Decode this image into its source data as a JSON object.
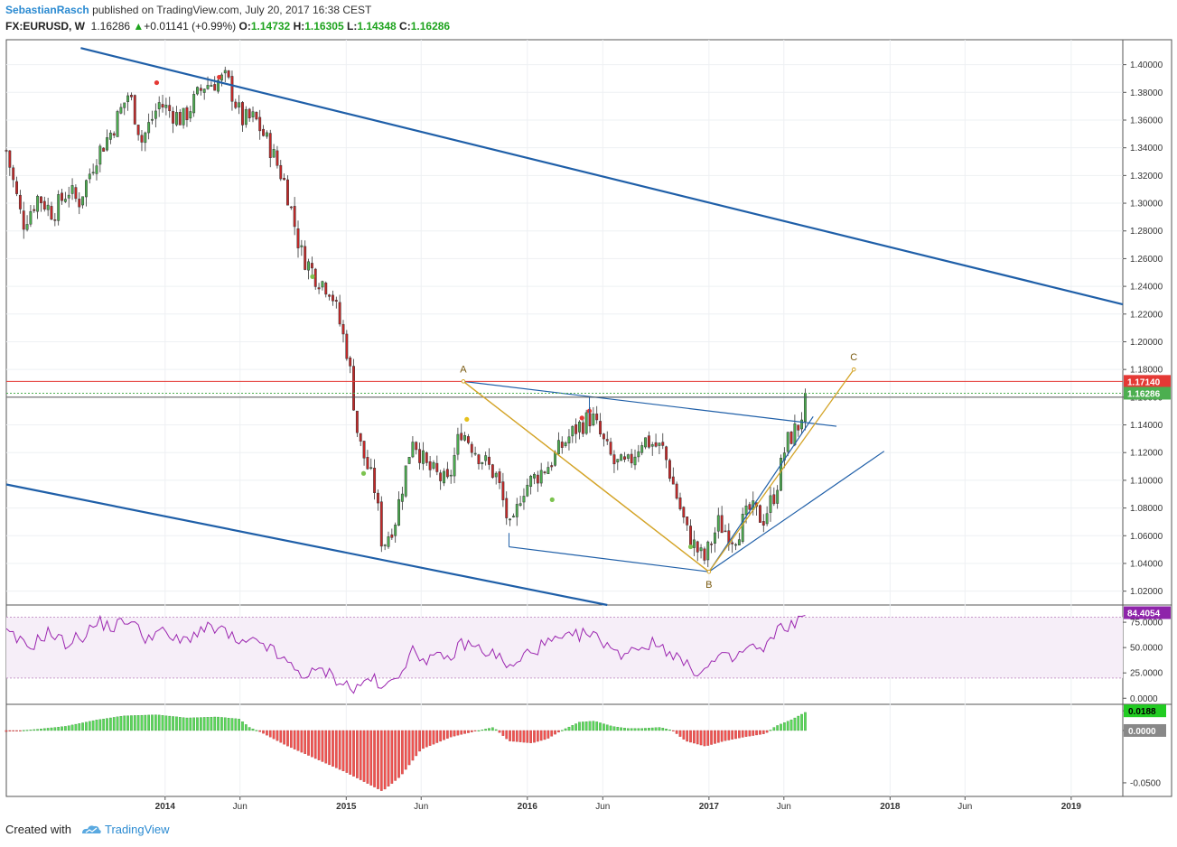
{
  "header": {
    "author": "SebastianRasch",
    "published_on": "published on TradingView.com, July 20, 2017 16:38 CEST",
    "symbol": "FX:EURUSD, W",
    "price": "1.16286",
    "change_arrow": "▲",
    "change": "+0.01141 (+0.99%)",
    "open_label": "O:",
    "open": "1.14732",
    "high_label": "H:",
    "high": "1.16305",
    "low_label": "L:",
    "low": "1.14348",
    "close_label": "C:",
    "close": "1.16286"
  },
  "footer": {
    "created_with": "Created with",
    "brand": "TradingView",
    "logo_icon": "tradingview-cloud-icon"
  },
  "colors": {
    "up": "#4caf50",
    "down": "#c62828",
    "trend": "#1f5fa8",
    "abc": "#d4a52a",
    "rsi": "#9c27b0",
    "hist_pos": "#5bd75b",
    "hist_neg": "#ef5350"
  },
  "chart_data": [
    {
      "type": "candlestick",
      "x_ticks": [
        {
          "label": "2014",
          "date": "2014-01-01",
          "bold": true
        },
        {
          "label": "Jun",
          "date": "2014-06-01",
          "bold": false
        },
        {
          "label": "2015",
          "date": "2015-01-01",
          "bold": true
        },
        {
          "label": "Jun",
          "date": "2015-06-01",
          "bold": false
        },
        {
          "label": "2016",
          "date": "2016-01-01",
          "bold": true
        },
        {
          "label": "Jun",
          "date": "2016-06-01",
          "bold": false
        },
        {
          "label": "2017",
          "date": "2017-01-01",
          "bold": true
        },
        {
          "label": "Jun",
          "date": "2017-06-01",
          "bold": false
        },
        {
          "label": "2018",
          "date": "2018-01-01",
          "bold": true
        },
        {
          "label": "Jun",
          "date": "2018-06-01",
          "bold": false
        },
        {
          "label": "2019",
          "date": "2019-01-01",
          "bold": true
        }
      ],
      "x_range": [
        "2013-02-15",
        "2019-04-15"
      ],
      "y_range": [
        1.01,
        1.418
      ],
      "y_ticks": [
        "1.02000",
        "1.04000",
        "1.06000",
        "1.08000",
        "1.10000",
        "1.12000",
        "1.14000",
        "1.16000",
        "1.18000",
        "1.20000",
        "1.22000",
        "1.24000",
        "1.26000",
        "1.28000",
        "1.30000",
        "1.32000",
        "1.34000",
        "1.36000",
        "1.38000",
        "1.40000"
      ],
      "price_labels": [
        {
          "text": "1.17140",
          "value": 1.1714,
          "color": "#e53935"
        },
        {
          "text": "1.16286",
          "value": 1.16286,
          "color": "#4caf50"
        }
      ],
      "close_path": [
        [
          "2013-02-15",
          1.338
        ],
        [
          "2013-03-20",
          1.285
        ],
        [
          "2013-04-20",
          1.305
        ],
        [
          "2013-05-20",
          1.293
        ],
        [
          "2013-06-20",
          1.31
        ],
        [
          "2013-07-10",
          1.3
        ],
        [
          "2013-08-15",
          1.334
        ],
        [
          "2013-09-15",
          1.352
        ],
        [
          "2013-10-20",
          1.38
        ],
        [
          "2013-11-15",
          1.345
        ],
        [
          "2013-12-20",
          1.372
        ],
        [
          "2014-02-05",
          1.36
        ],
        [
          "2014-03-20",
          1.385
        ],
        [
          "2014-05-05",
          1.39
        ],
        [
          "2014-06-05",
          1.36
        ],
        [
          "2014-07-01",
          1.361
        ],
        [
          "2014-08-01",
          1.34
        ],
        [
          "2014-09-01",
          1.313
        ],
        [
          "2014-10-01",
          1.265
        ],
        [
          "2014-11-01",
          1.247
        ],
        [
          "2014-12-01",
          1.238
        ],
        [
          "2015-01-05",
          1.19
        ],
        [
          "2015-01-25",
          1.13
        ],
        [
          "2015-03-01",
          1.092
        ],
        [
          "2015-03-15",
          1.052
        ],
        [
          "2015-04-10",
          1.072
        ],
        [
          "2015-05-15",
          1.132
        ],
        [
          "2015-06-10",
          1.11
        ],
        [
          "2015-07-25",
          1.097
        ],
        [
          "2015-08-20",
          1.137
        ],
        [
          "2015-09-20",
          1.121
        ],
        [
          "2015-11-01",
          1.102
        ],
        [
          "2015-11-30",
          1.06
        ],
        [
          "2015-12-20",
          1.093
        ],
        [
          "2016-02-15",
          1.112
        ],
        [
          "2016-03-15",
          1.127
        ],
        [
          "2016-04-10",
          1.138
        ],
        [
          "2016-05-10",
          1.146
        ],
        [
          "2016-06-05",
          1.125
        ],
        [
          "2016-06-24",
          1.112
        ],
        [
          "2016-07-20",
          1.11
        ],
        [
          "2016-08-20",
          1.13
        ],
        [
          "2016-10-01",
          1.122
        ],
        [
          "2016-10-25",
          1.092
        ],
        [
          "2016-11-20",
          1.06
        ],
        [
          "2016-12-22",
          1.042
        ],
        [
          "2017-01-20",
          1.069
        ],
        [
          "2017-02-20",
          1.058
        ],
        [
          "2017-03-25",
          1.079
        ],
        [
          "2017-04-20",
          1.072
        ],
        [
          "2017-05-15",
          1.092
        ],
        [
          "2017-06-05",
          1.126
        ],
        [
          "2017-07-01",
          1.14
        ],
        [
          "2017-07-20",
          1.16286
        ]
      ],
      "markers": [
        {
          "date": "2013-12-15",
          "value": 1.387,
          "color": "#e53935"
        },
        {
          "date": "2014-04-20",
          "value": 1.391,
          "color": "#e53935"
        },
        {
          "date": "2014-10-25",
          "value": 1.247,
          "color": "#7cc34f"
        },
        {
          "date": "2015-02-05",
          "value": 1.105,
          "color": "#7cc34f"
        },
        {
          "date": "2015-09-01",
          "value": 1.144,
          "color": "#e6c11b"
        },
        {
          "date": "2016-04-20",
          "value": 1.145,
          "color": "#e53935"
        },
        {
          "date": "2016-05-05",
          "value": 1.15,
          "color": "#e53935"
        },
        {
          "date": "2016-02-20",
          "value": 1.086,
          "color": "#7cc34f"
        },
        {
          "date": "2016-11-25",
          "value": 1.052,
          "color": "#7cc34f"
        }
      ],
      "abc_points": [
        {
          "label": "A",
          "date": "2015-08-25",
          "value": 1.1714
        },
        {
          "label": "B",
          "date": "2017-01-01",
          "value": 1.034
        },
        {
          "label": "C",
          "date": "2017-10-20",
          "value": 1.18
        }
      ],
      "trend_lines": [
        {
          "from": [
            "2013-07-15",
            1.412
          ],
          "to": [
            "2019-04-15",
            1.227
          ],
          "width": 2.2
        },
        {
          "from": [
            "2013-02-15",
            1.097
          ],
          "to": [
            "2016-06-10",
            1.01
          ],
          "width": 2.2
        },
        {
          "from": [
            "2015-08-25",
            1.1714
          ],
          "to": [
            "2017-09-15",
            1.139
          ],
          "width": 1.2
        },
        {
          "from": [
            "2015-11-25",
            1.052
          ],
          "to": [
            "2017-01-01",
            1.034
          ],
          "width": 1.2
        },
        {
          "from": [
            "2017-01-01",
            1.034
          ],
          "to": [
            "2017-12-20",
            1.121
          ],
          "width": 1.2
        },
        {
          "from": [
            "2017-01-01",
            1.034
          ],
          "to": [
            "2017-07-30",
            1.146
          ],
          "width": 1.2
        },
        {
          "from": [
            "2016-05-05",
            1.16
          ],
          "to": [
            "2016-05-05",
            1.148
          ],
          "width": 1.0
        },
        {
          "from": [
            "2016-05-05",
            1.16
          ],
          "to": [
            "2017-07-20",
            1.16
          ],
          "width": 1.0
        },
        {
          "from": [
            "2015-11-25",
            1.052
          ],
          "to": [
            "2015-11-25",
            1.062
          ],
          "width": 1.0
        }
      ],
      "hlines": [
        {
          "value": 1.1714,
          "color": "#e53935"
        },
        {
          "value": 1.16286,
          "color": "#4caf50",
          "dashed": true
        },
        {
          "value": 1.16,
          "color": "#555555"
        }
      ]
    },
    {
      "type": "line",
      "name": "RSI",
      "y_range": [
        -6,
        92
      ],
      "y_ticks": [
        "75.0000",
        "50.0000",
        "25.0000",
        "0.0000"
      ],
      "band": [
        20,
        80
      ],
      "last_label": "84.4054",
      "path": [
        [
          "2013-02-15",
          64
        ],
        [
          "2013-04-01",
          50
        ],
        [
          "2013-05-10",
          65
        ],
        [
          "2013-06-15",
          54
        ],
        [
          "2013-07-20",
          62
        ],
        [
          "2013-08-20",
          75
        ],
        [
          "2013-09-20",
          70
        ],
        [
          "2013-10-20",
          79
        ],
        [
          "2013-11-20",
          60
        ],
        [
          "2013-12-20",
          66
        ],
        [
          "2014-02-01",
          55
        ],
        [
          "2014-03-15",
          68
        ],
        [
          "2014-04-25",
          68
        ],
        [
          "2014-06-01",
          52
        ],
        [
          "2014-07-15",
          56
        ],
        [
          "2014-08-15",
          42
        ],
        [
          "2014-09-15",
          30
        ],
        [
          "2014-10-15",
          22
        ],
        [
          "2014-11-15",
          28
        ],
        [
          "2014-12-20",
          17
        ],
        [
          "2015-01-20",
          8
        ],
        [
          "2015-02-20",
          22
        ],
        [
          "2015-03-15",
          6
        ],
        [
          "2015-04-10",
          22
        ],
        [
          "2015-05-15",
          45
        ],
        [
          "2015-06-10",
          40
        ],
        [
          "2015-07-25",
          38
        ],
        [
          "2015-08-25",
          55
        ],
        [
          "2015-09-20",
          50
        ],
        [
          "2015-11-01",
          42
        ],
        [
          "2015-12-01",
          28
        ],
        [
          "2016-01-01",
          45
        ],
        [
          "2016-02-15",
          55
        ],
        [
          "2016-03-20",
          58
        ],
        [
          "2016-04-25",
          64
        ],
        [
          "2016-06-10",
          55
        ],
        [
          "2016-06-28",
          42
        ],
        [
          "2016-08-01",
          50
        ],
        [
          "2016-09-15",
          54
        ],
        [
          "2016-10-20",
          45
        ],
        [
          "2016-11-20",
          30
        ],
        [
          "2016-12-20",
          26
        ],
        [
          "2017-01-20",
          40
        ],
        [
          "2017-02-20",
          38
        ],
        [
          "2017-03-25",
          52
        ],
        [
          "2017-04-20",
          45
        ],
        [
          "2017-05-15",
          65
        ],
        [
          "2017-06-10",
          72
        ],
        [
          "2017-07-01",
          76
        ],
        [
          "2017-07-20",
          84.4
        ]
      ]
    },
    {
      "type": "bar",
      "name": "MACD histogram",
      "y_range": [
        -0.063,
        0.025
      ],
      "y_ticks": [
        "0.0188",
        "0.0000",
        "-0.0500"
      ],
      "path": [
        [
          "2013-02-15",
          -0.001
        ],
        [
          "2013-04-15",
          0.001
        ],
        [
          "2013-06-15",
          0.004
        ],
        [
          "2013-08-15",
          0.01
        ],
        [
          "2013-10-10",
          0.014
        ],
        [
          "2013-12-15",
          0.015
        ],
        [
          "2014-02-15",
          0.012
        ],
        [
          "2014-04-15",
          0.013
        ],
        [
          "2014-05-30",
          0.011
        ],
        [
          "2014-06-20",
          0.003
        ],
        [
          "2014-07-15",
          -0.002
        ],
        [
          "2014-09-01",
          -0.014
        ],
        [
          "2014-11-01",
          -0.027
        ],
        [
          "2015-01-01",
          -0.04
        ],
        [
          "2015-03-15",
          -0.058
        ],
        [
          "2015-04-20",
          -0.044
        ],
        [
          "2015-06-01",
          -0.018
        ],
        [
          "2015-08-01",
          -0.006
        ],
        [
          "2015-09-15",
          -0.001
        ],
        [
          "2015-10-25",
          0.003
        ],
        [
          "2015-11-25",
          -0.01
        ],
        [
          "2016-01-10",
          -0.012
        ],
        [
          "2016-02-10",
          -0.008
        ],
        [
          "2016-03-10",
          0.0
        ],
        [
          "2016-04-15",
          0.008
        ],
        [
          "2016-05-15",
          0.009
        ],
        [
          "2016-06-20",
          0.004
        ],
        [
          "2016-07-20",
          0.002
        ],
        [
          "2016-08-20",
          0.002
        ],
        [
          "2016-09-25",
          0.003
        ],
        [
          "2016-10-20",
          0.0
        ],
        [
          "2016-11-15",
          -0.01
        ],
        [
          "2016-12-25",
          -0.015
        ],
        [
          "2017-02-01",
          -0.01
        ],
        [
          "2017-03-15",
          -0.006
        ],
        [
          "2017-04-25",
          -0.003
        ],
        [
          "2017-05-15",
          0.004
        ],
        [
          "2017-06-15",
          0.01
        ],
        [
          "2017-07-20",
          0.0188
        ]
      ],
      "labels": [
        {
          "text": "0.0188",
          "value": 0.0188,
          "bg": "#22cc22",
          "fg": "#000000"
        },
        {
          "text": "0.0000",
          "value": 0.0,
          "bg": "#888888",
          "fg": "#ffffff"
        }
      ]
    }
  ]
}
